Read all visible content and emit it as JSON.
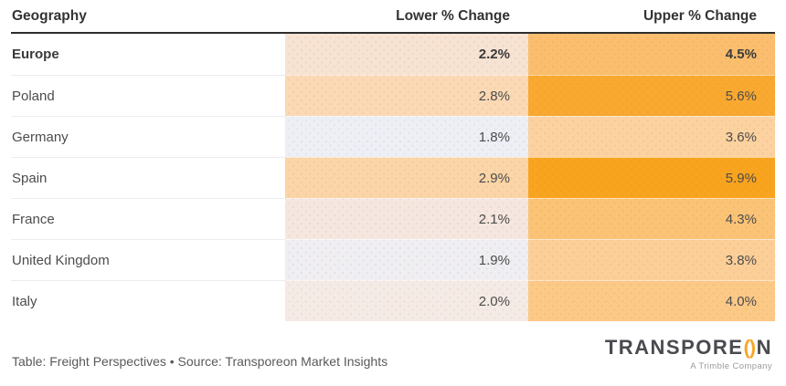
{
  "chart_data": {
    "type": "table",
    "columns": [
      "Geography",
      "Lower % Change",
      "Upper % Change"
    ],
    "rows": [
      {
        "geography": "Europe",
        "lower_pct_change": 2.2,
        "upper_pct_change": 4.5
      },
      {
        "geography": "Poland",
        "lower_pct_change": 2.8,
        "upper_pct_change": 5.6
      },
      {
        "geography": "Germany",
        "lower_pct_change": 1.8,
        "upper_pct_change": 3.6
      },
      {
        "geography": "Spain",
        "lower_pct_change": 2.9,
        "upper_pct_change": 5.9
      },
      {
        "geography": "France",
        "lower_pct_change": 2.1,
        "upper_pct_change": 4.3
      },
      {
        "geography": "United Kingdom",
        "lower_pct_change": 1.9,
        "upper_pct_change": 3.8
      },
      {
        "geography": "Italy",
        "lower_pct_change": 2.0,
        "upper_pct_change": 4.0
      }
    ],
    "legend_position": "none",
    "grid": false,
    "title": ""
  },
  "table": {
    "columns": [
      "Geography",
      "Lower % Change",
      "Upper % Change"
    ],
    "rows": [
      {
        "geography": "Europe",
        "lower": "2.2%",
        "upper": "4.5%",
        "lower_bg": "#f7e3d3",
        "upper_bg": "#fbbe6e"
      },
      {
        "geography": "Poland",
        "lower": "2.8%",
        "upper": "5.6%",
        "lower_bg": "#fbd9b4",
        "upper_bg": "#f9a930"
      },
      {
        "geography": "Germany",
        "lower": "1.8%",
        "upper": "3.6%",
        "lower_bg": "#edeff6",
        "upper_bg": "#fcd2a0"
      },
      {
        "geography": "Spain",
        "lower": "2.9%",
        "upper": "5.9%",
        "lower_bg": "#fbd5a7",
        "upper_bg": "#f9a41f"
      },
      {
        "geography": "France",
        "lower": "2.1%",
        "upper": "4.3%",
        "lower_bg": "#f5e7e0",
        "upper_bg": "#fbc376"
      },
      {
        "geography": "United Kingdom",
        "lower": "1.9%",
        "upper": "3.8%",
        "lower_bg": "#efeef3",
        "upper_bg": "#fccf99"
      },
      {
        "geography": "Italy",
        "lower": "2.0%",
        "upper": "4.0%",
        "lower_bg": "#f5ebe6",
        "upper_bg": "#fcc987"
      }
    ]
  },
  "footer": {
    "caption": "Table: Freight Perspectives • Source: Transporeon Market Insights"
  },
  "logo": {
    "text_left": "TRANSPORE",
    "o_glyph": "()",
    "text_right": "N",
    "tagline": "A Trimble Company",
    "accent_color": "#f7a728",
    "text_color": "#4a4a50"
  }
}
